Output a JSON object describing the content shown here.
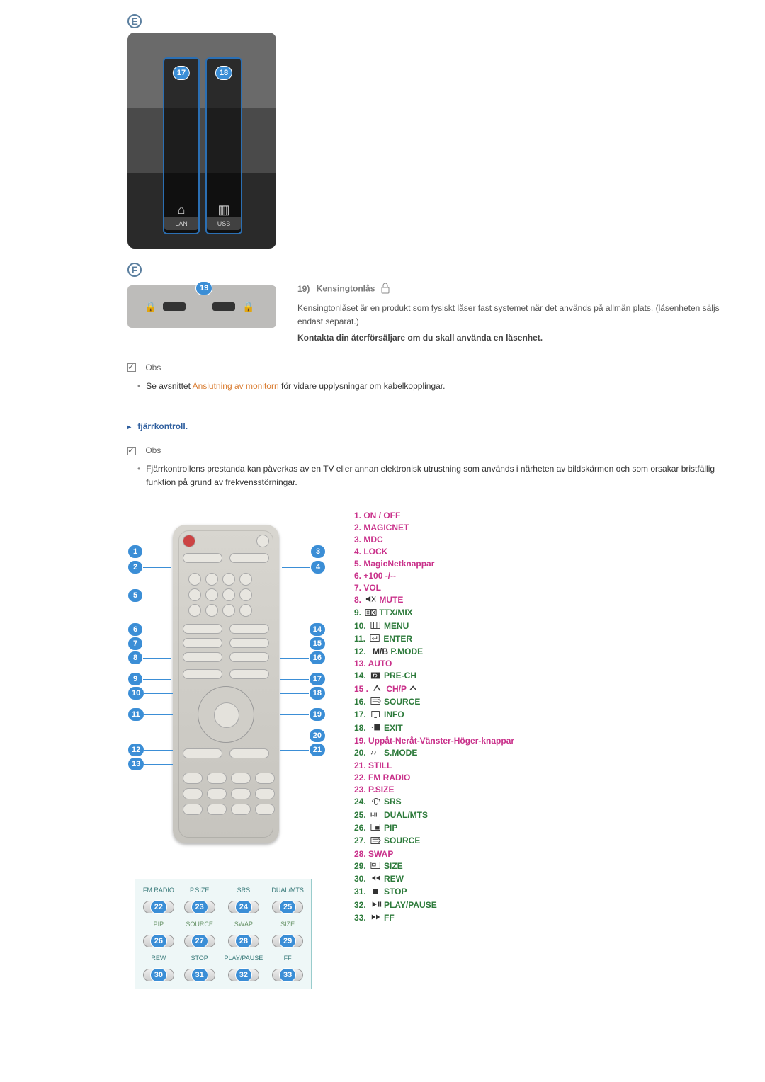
{
  "colors": {
    "link": "#d97b2f",
    "section_header": "#2f5f9f",
    "badge_border": "#5b7f9f",
    "num_badge_bg": "#3b8ed6",
    "list_magenta": "#c9308a",
    "list_green": "#2c7a3a",
    "list_dark": "#333333"
  },
  "badge_e": "E",
  "badge_f": "F",
  "slot_a_num": "17",
  "slot_b_num": "18",
  "slot_a_label": "LAN",
  "slot_b_label": "USB",
  "badge_19": "19",
  "kensington": {
    "num": "19)",
    "title": "Kensingtonlås",
    "p1": "Kensingtonlåset är en produkt som fysiskt låser fast systemet när det används på allmän plats. (låsenheten säljs endast separat.)",
    "p2": "Kontakta din återförsäljare om du skall använda en låsenhet."
  },
  "obs_label": "Obs",
  "note1_prefix": "Se avsnittet",
  "note1_link": "Anslutning av monitorn",
  "note1_suffix": "för vidare upplysningar om kabelkopplingar.",
  "remote_header": "fjärrkontroll.",
  "note2": "Fjärrkontrollens prestanda kan påverkas av en TV eller annan elektronisk utrustning som används i närheten av bildskärmen och som orsakar bristfällig funktion på grund av frekvensstörningar.",
  "panel": {
    "r1": [
      "FM RADIO",
      "P.SIZE",
      "SRS",
      "DUAL/MTS"
    ],
    "r2": [
      "PIP",
      "SOURCE",
      "SWAP",
      "SIZE"
    ],
    "r3": [
      "REW",
      "STOP",
      "PLAY/PAUSE",
      "FF"
    ],
    "nums": {
      "r1": [
        "22",
        "23",
        "24",
        "25"
      ],
      "r2": [
        "26",
        "27",
        "28",
        "29"
      ],
      "r3": [
        "30",
        "31",
        "32",
        "33"
      ]
    }
  },
  "list": [
    {
      "n": "1.",
      "text": "ON / OFF",
      "color": "#c9308a"
    },
    {
      "n": "2.",
      "text": "MAGICNET",
      "color": "#c9308a"
    },
    {
      "n": "3.",
      "text": "MDC",
      "color": "#c9308a"
    },
    {
      "n": "4.",
      "text": "LOCK",
      "color": "#c9308a"
    },
    {
      "n": "5.",
      "text": "MagicNetknappar",
      "color": "#c9308a"
    },
    {
      "n": "6.",
      "text": "+100 -/--",
      "color": "#c9308a"
    },
    {
      "n": "7.",
      "text": "VOL",
      "color": "#c9308a"
    },
    {
      "n": "8.",
      "icon": "mute",
      "text": "MUTE",
      "color": "#c9308a"
    },
    {
      "n": "9.",
      "icon": "ttx",
      "text": "TTX/MIX",
      "color": "#2c7a3a"
    },
    {
      "n": "10.",
      "icon": "menu",
      "text": "MENU",
      "color": "#2c7a3a"
    },
    {
      "n": "11.",
      "icon": "enter",
      "text": "ENTER",
      "color": "#2c7a3a"
    },
    {
      "n": "12.",
      "icon": "mb",
      "prefix": "M/B",
      "text": "P.MODE",
      "color": "#2c7a3a"
    },
    {
      "n": "13.",
      "text": "AUTO",
      "color": "#c9308a"
    },
    {
      "n": "14.",
      "icon": "prech",
      "text": "PRE-CH",
      "color": "#2c7a3a"
    },
    {
      "n": "15 .",
      "icon": "chp",
      "text": "CH/P",
      "suffix_icon": "up",
      "color": "#c9308a"
    },
    {
      "n": "16.",
      "icon": "source",
      "text": "SOURCE",
      "color": "#2c7a3a"
    },
    {
      "n": "17.",
      "icon": "info",
      "text": "INFO",
      "color": "#2c7a3a"
    },
    {
      "n": "18.",
      "icon": "exit",
      "text": "EXIT",
      "color": "#2c7a3a"
    },
    {
      "n": "19.",
      "text": "Uppåt-Neråt-Vänster-Höger-knappar",
      "color": "#c9308a"
    },
    {
      "n": "20.",
      "icon": "smode",
      "text": "S.MODE",
      "color": "#2c7a3a"
    },
    {
      "n": "21.",
      "text": "STILL",
      "color": "#c9308a"
    },
    {
      "n": "22.",
      "text": "FM RADIO",
      "color": "#c9308a"
    },
    {
      "n": "23.",
      "text": "P.SIZE",
      "color": "#c9308a"
    },
    {
      "n": "24.",
      "icon": "srs",
      "text": "SRS",
      "color": "#2c7a3a"
    },
    {
      "n": "25.",
      "icon": "dual",
      "text": "DUAL/MTS",
      "color": "#2c7a3a"
    },
    {
      "n": "26.",
      "icon": "pip",
      "text": "PIP",
      "color": "#2c7a3a"
    },
    {
      "n": "27.",
      "icon": "source2",
      "text": "SOURCE",
      "color": "#2c7a3a"
    },
    {
      "n": "28.",
      "text": "SWAP",
      "color": "#c9308a"
    },
    {
      "n": "29.",
      "icon": "size",
      "text": "SIZE",
      "color": "#2c7a3a"
    },
    {
      "n": "30.",
      "icon": "rew",
      "text": "REW",
      "color": "#2c7a3a"
    },
    {
      "n": "31.",
      "icon": "stop",
      "text": "STOP",
      "color": "#2c7a3a"
    },
    {
      "n": "32.",
      "icon": "play",
      "text": "PLAY/PAUSE",
      "color": "#2c7a3a"
    },
    {
      "n": "33.",
      "icon": "ff",
      "text": "FF",
      "color": "#2c7a3a"
    }
  ],
  "callouts_left": [
    {
      "n": "1",
      "t": 28
    },
    {
      "n": "2",
      "t": 50
    },
    {
      "n": "5",
      "t": 90
    },
    {
      "n": "6",
      "t": 138
    },
    {
      "n": "7",
      "t": 158
    },
    {
      "n": "8",
      "t": 178
    },
    {
      "n": "9",
      "t": 208
    },
    {
      "n": "10",
      "t": 228
    },
    {
      "n": "11",
      "t": 258
    },
    {
      "n": "12",
      "t": 308
    },
    {
      "n": "13",
      "t": 328
    }
  ],
  "callouts_right": [
    {
      "n": "3",
      "t": 28
    },
    {
      "n": "4",
      "t": 50
    },
    {
      "n": "14",
      "t": 138
    },
    {
      "n": "15",
      "t": 158
    },
    {
      "n": "16",
      "t": 178
    },
    {
      "n": "17",
      "t": 208
    },
    {
      "n": "18",
      "t": 228
    },
    {
      "n": "19",
      "t": 258
    },
    {
      "n": "20",
      "t": 288
    },
    {
      "n": "21",
      "t": 308
    }
  ]
}
